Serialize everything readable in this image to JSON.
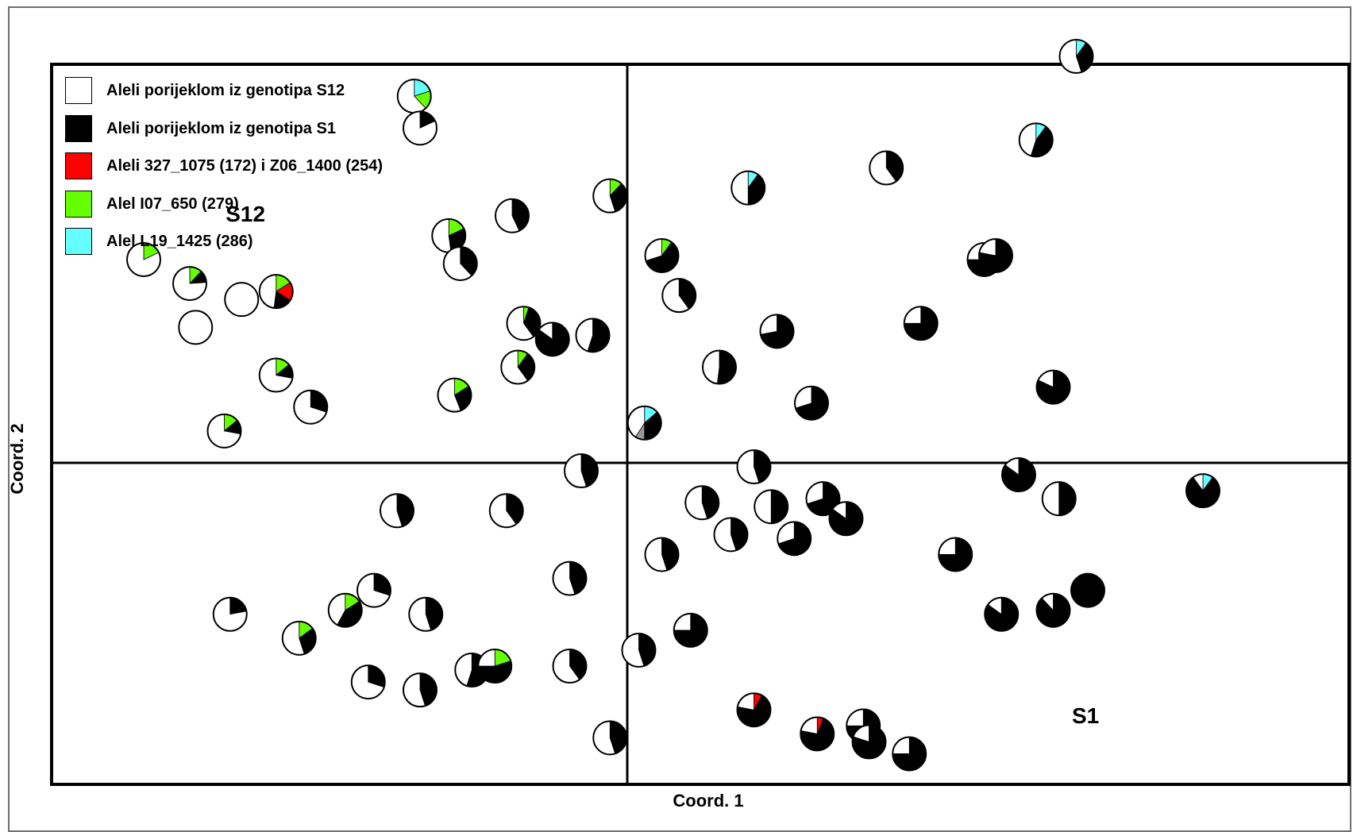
{
  "chart_data": {
    "type": "scatter",
    "subtype": "pie-markers",
    "xlabel": "Coord. 1",
    "ylabel": "Coord. 2",
    "xlim": [
      -1,
      1.25
    ],
    "ylim": [
      -1,
      1
    ],
    "grid": false,
    "zero_lines": true,
    "legend_position": "top-left",
    "legend": [
      {
        "key": "white",
        "label": "Aleli porijeklom iz genotipa S12",
        "color": "#ffffff"
      },
      {
        "key": "black",
        "label": "Aleli porijeklom iz genotipa S1",
        "color": "#000000"
      },
      {
        "key": "red",
        "label": "Aleli 327_1075 (172) i Z06_1400 (254)",
        "color": "#ff0000"
      },
      {
        "key": "green",
        "label": "Alel I07_650 (279)",
        "color": "#66ff00"
      },
      {
        "key": "cyan",
        "label": "Alel L19_1425 (286)",
        "color": "#66ffff"
      }
    ],
    "labels": [
      {
        "text": "S12",
        "x": -0.67,
        "y": 0.62
      },
      {
        "text": "S1",
        "x": 0.8,
        "y": -0.64
      }
    ],
    "colors": {
      "white": "#ffffff",
      "black": "#000000",
      "red": "#ff0000",
      "green": "#66ff00",
      "cyan": "#66ffff",
      "gray": "#999999"
    },
    "points": [
      {
        "x": -0.75,
        "y": 0.34,
        "w": 1,
        "k": 0,
        "g": 0
      },
      {
        "x": -0.67,
        "y": 0.41,
        "w": 1,
        "k": 0,
        "g": 0
      },
      {
        "x": -0.84,
        "y": 0.51,
        "w": 0.82,
        "k": 0,
        "g": 0.18
      },
      {
        "x": -0.76,
        "y": 0.45,
        "w": 0.76,
        "k": 0.12,
        "g": 0.12
      },
      {
        "x": -0.61,
        "y": 0.43,
        "w": 0.48,
        "k": 0.18,
        "g": 0.16,
        "r": 0.18
      },
      {
        "x": -0.61,
        "y": 0.22,
        "w": 0.72,
        "k": 0.14,
        "g": 0.14
      },
      {
        "x": -0.55,
        "y": 0.14,
        "w": 0.7,
        "k": 0.3
      },
      {
        "x": -0.7,
        "y": 0.08,
        "w": 0.72,
        "k": 0.14,
        "g": 0.14
      },
      {
        "x": -0.37,
        "y": 0.92,
        "w": 0.62,
        "c": 0.2,
        "g": 0.18
      },
      {
        "x": -0.36,
        "y": 0.84,
        "w": 0.82,
        "k": 0.18
      },
      {
        "x": -0.31,
        "y": 0.57,
        "w": 0.52,
        "k": 0.3,
        "g": 0.18
      },
      {
        "x": -0.29,
        "y": 0.5,
        "w": 0.62,
        "k": 0.38
      },
      {
        "x": -0.2,
        "y": 0.62,
        "w": 0.57,
        "k": 0.43
      },
      {
        "x": -0.3,
        "y": 0.17,
        "w": 0.56,
        "k": 0.28,
        "g": 0.16
      },
      {
        "x": -0.19,
        "y": 0.24,
        "w": 0.6,
        "k": 0.3,
        "g": 0.1
      },
      {
        "x": -0.18,
        "y": 0.35,
        "w": 0.6,
        "k": 0.35,
        "g": 0.05
      },
      {
        "x": -0.13,
        "y": 0.31,
        "w": 0.15,
        "k": 0.85
      },
      {
        "x": -0.06,
        "y": 0.32,
        "w": 0.45,
        "k": 0.55
      },
      {
        "x": -0.03,
        "y": 0.67,
        "w": 0.55,
        "k": 0.33,
        "g": 0.12
      },
      {
        "x": -0.21,
        "y": -0.12,
        "w": 0.6,
        "k": 0.4
      },
      {
        "x": -0.08,
        "y": -0.02,
        "w": 0.55,
        "k": 0.45
      },
      {
        "x": -0.4,
        "y": -0.12,
        "w": 0.55,
        "k": 0.45
      },
      {
        "x": -0.44,
        "y": -0.32,
        "w": 0.7,
        "k": 0.3
      },
      {
        "x": -0.35,
        "y": -0.38,
        "w": 0.55,
        "k": 0.45
      },
      {
        "x": -0.69,
        "y": -0.38,
        "w": 0.78,
        "k": 0.22
      },
      {
        "x": -0.57,
        "y": -0.44,
        "w": 0.55,
        "k": 0.3,
        "g": 0.15
      },
      {
        "x": -0.49,
        "y": -0.37,
        "w": 0.42,
        "k": 0.42,
        "g": 0.16
      },
      {
        "x": -0.45,
        "y": -0.55,
        "w": 0.7,
        "k": 0.3
      },
      {
        "x": -0.36,
        "y": -0.57,
        "w": 0.55,
        "k": 0.45
      },
      {
        "x": -0.27,
        "y": -0.52,
        "w": 0.45,
        "k": 0.55
      },
      {
        "x": -0.23,
        "y": -0.51,
        "w": 0.25,
        "k": 0.55,
        "g": 0.2
      },
      {
        "x": -0.1,
        "y": -0.29,
        "w": 0.55,
        "k": 0.45
      },
      {
        "x": -0.1,
        "y": -0.51,
        "w": 0.6,
        "k": 0.4
      },
      {
        "x": -0.03,
        "y": -0.69,
        "w": 0.55,
        "k": 0.45
      },
      {
        "x": 0.02,
        "y": -0.47,
        "w": 0.55,
        "k": 0.45
      },
      {
        "x": 0.03,
        "y": 0.1,
        "w": 0.45,
        "k": 0.4,
        "c": 0.15,
        "gray": 0.1
      },
      {
        "x": 0.06,
        "y": 0.52,
        "w": 0.3,
        "k": 0.6,
        "g": 0.1
      },
      {
        "x": 0.09,
        "y": 0.42,
        "w": 0.6,
        "k": 0.4
      },
      {
        "x": 0.21,
        "y": 0.69,
        "w": 0.5,
        "k": 0.4,
        "c": 0.1
      },
      {
        "x": 0.16,
        "y": 0.24,
        "w": 0.48,
        "k": 0.52
      },
      {
        "x": 0.26,
        "y": 0.33,
        "w": 0.28,
        "k": 0.72
      },
      {
        "x": 0.22,
        "y": -0.01,
        "w": 0.55,
        "k": 0.45
      },
      {
        "x": 0.13,
        "y": -0.1,
        "w": 0.55,
        "k": 0.45
      },
      {
        "x": 0.18,
        "y": -0.18,
        "w": 0.55,
        "k": 0.45
      },
      {
        "x": 0.25,
        "y": -0.11,
        "w": 0.5,
        "k": 0.5
      },
      {
        "x": 0.29,
        "y": -0.19,
        "w": 0.3,
        "k": 0.7
      },
      {
        "x": 0.06,
        "y": -0.23,
        "w": 0.55,
        "k": 0.45
      },
      {
        "x": 0.11,
        "y": -0.42,
        "w": 0.25,
        "k": 0.75
      },
      {
        "x": 0.32,
        "y": 0.15,
        "w": 0.3,
        "k": 0.7
      },
      {
        "x": 0.34,
        "y": -0.09,
        "w": 0.3,
        "k": 0.7
      },
      {
        "x": 0.38,
        "y": -0.14,
        "w": 0.15,
        "k": 0.85
      },
      {
        "x": 0.33,
        "y": -0.68,
        "w": 0.22,
        "k": 0.72,
        "r": 0.06
      },
      {
        "x": 0.41,
        "y": -0.66,
        "w": 0.25,
        "k": 0.75
      },
      {
        "x": 0.45,
        "y": 0.74,
        "w": 0.6,
        "k": 0.4
      },
      {
        "x": 0.51,
        "y": 0.35,
        "w": 0.25,
        "k": 0.75
      },
      {
        "x": 0.22,
        "y": -0.62,
        "w": 0.22,
        "k": 0.7,
        "r": 0.08
      },
      {
        "x": 0.42,
        "y": -0.7,
        "w": 0.2,
        "k": 0.8
      },
      {
        "x": 0.49,
        "y": -0.73,
        "w": 0.25,
        "k": 0.75
      },
      {
        "x": 0.57,
        "y": -0.23,
        "w": 0.25,
        "k": 0.75
      },
      {
        "x": 0.62,
        "y": 0.51,
        "w": 0.25,
        "k": 0.75
      },
      {
        "x": 0.68,
        "y": -0.03,
        "w": 0.15,
        "k": 0.85
      },
      {
        "x": 0.64,
        "y": 0.52,
        "w": 0.22,
        "k": 0.78
      },
      {
        "x": 0.71,
        "y": 0.81,
        "w": 0.45,
        "k": 0.45,
        "c": 0.1
      },
      {
        "x": 0.65,
        "y": -0.38,
        "w": 0.15,
        "k": 0.85
      },
      {
        "x": 0.78,
        "y": 1.02,
        "w": 0.55,
        "k": 0.35,
        "c": 0.1
      },
      {
        "x": 1.0,
        "y": -0.07,
        "w": 0.1,
        "k": 0.8,
        "c": 0.1
      },
      {
        "x": 0.75,
        "y": -0.09,
        "w": 0.5,
        "k": 0.5
      },
      {
        "x": 0.74,
        "y": -0.37,
        "w": 0.12,
        "k": 0.88
      },
      {
        "x": 0.8,
        "y": -0.32,
        "w": 0,
        "k": 1
      },
      {
        "x": 0.74,
        "y": 0.19,
        "w": 0.18,
        "k": 0.82
      }
    ]
  }
}
